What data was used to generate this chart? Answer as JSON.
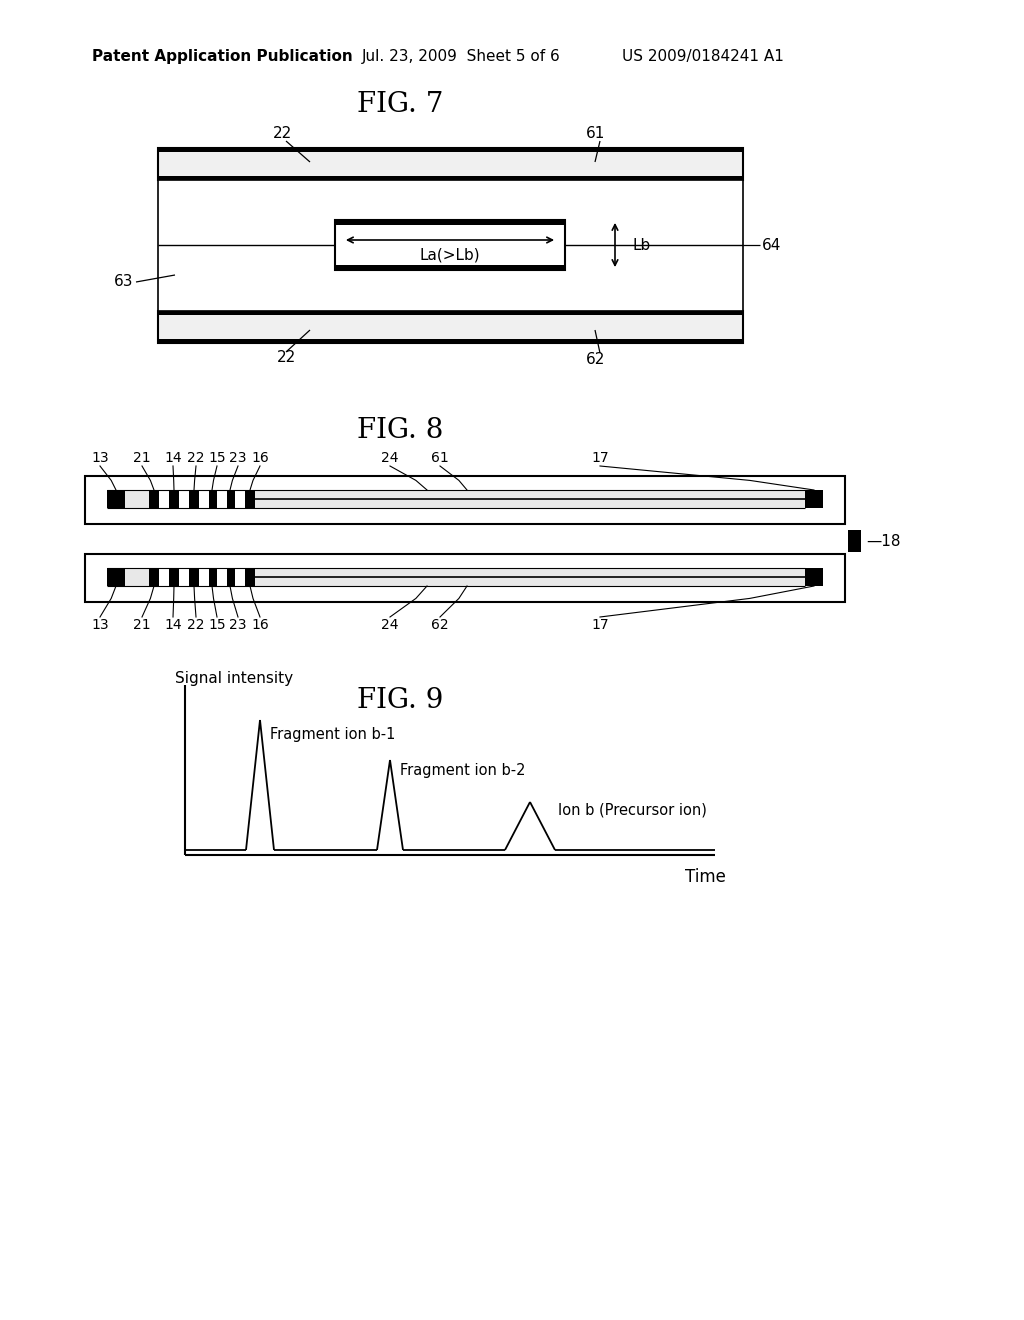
{
  "bg_color": "#ffffff",
  "header_text": "Patent Application Publication",
  "header_date": "Jul. 23, 2009  Sheet 5 of 6",
  "header_patent": "US 2009/0184241 A1",
  "fig7_title": "FIG. 7",
  "fig8_title": "FIG. 8",
  "fig9_title": "FIG. 9",
  "fig9_ylabel": "Signal intensity",
  "fig9_xlabel": "Time",
  "fig9_label1": "Fragment ion b-1",
  "fig9_label2": "Fragment ion b-2",
  "fig9_label3": "Ion b (Precursor ion)",
  "fig7_labels": [
    "22",
    "61",
    "64",
    "63",
    "22",
    "62"
  ],
  "fig8_labels_top": [
    "13",
    "21",
    "14",
    "22",
    "15",
    "23",
    "16",
    "24",
    "61",
    "17"
  ],
  "fig8_labels_bot": [
    "13",
    "21",
    "14",
    "22",
    "15",
    "23",
    "16",
    "24",
    "62",
    "17"
  ]
}
